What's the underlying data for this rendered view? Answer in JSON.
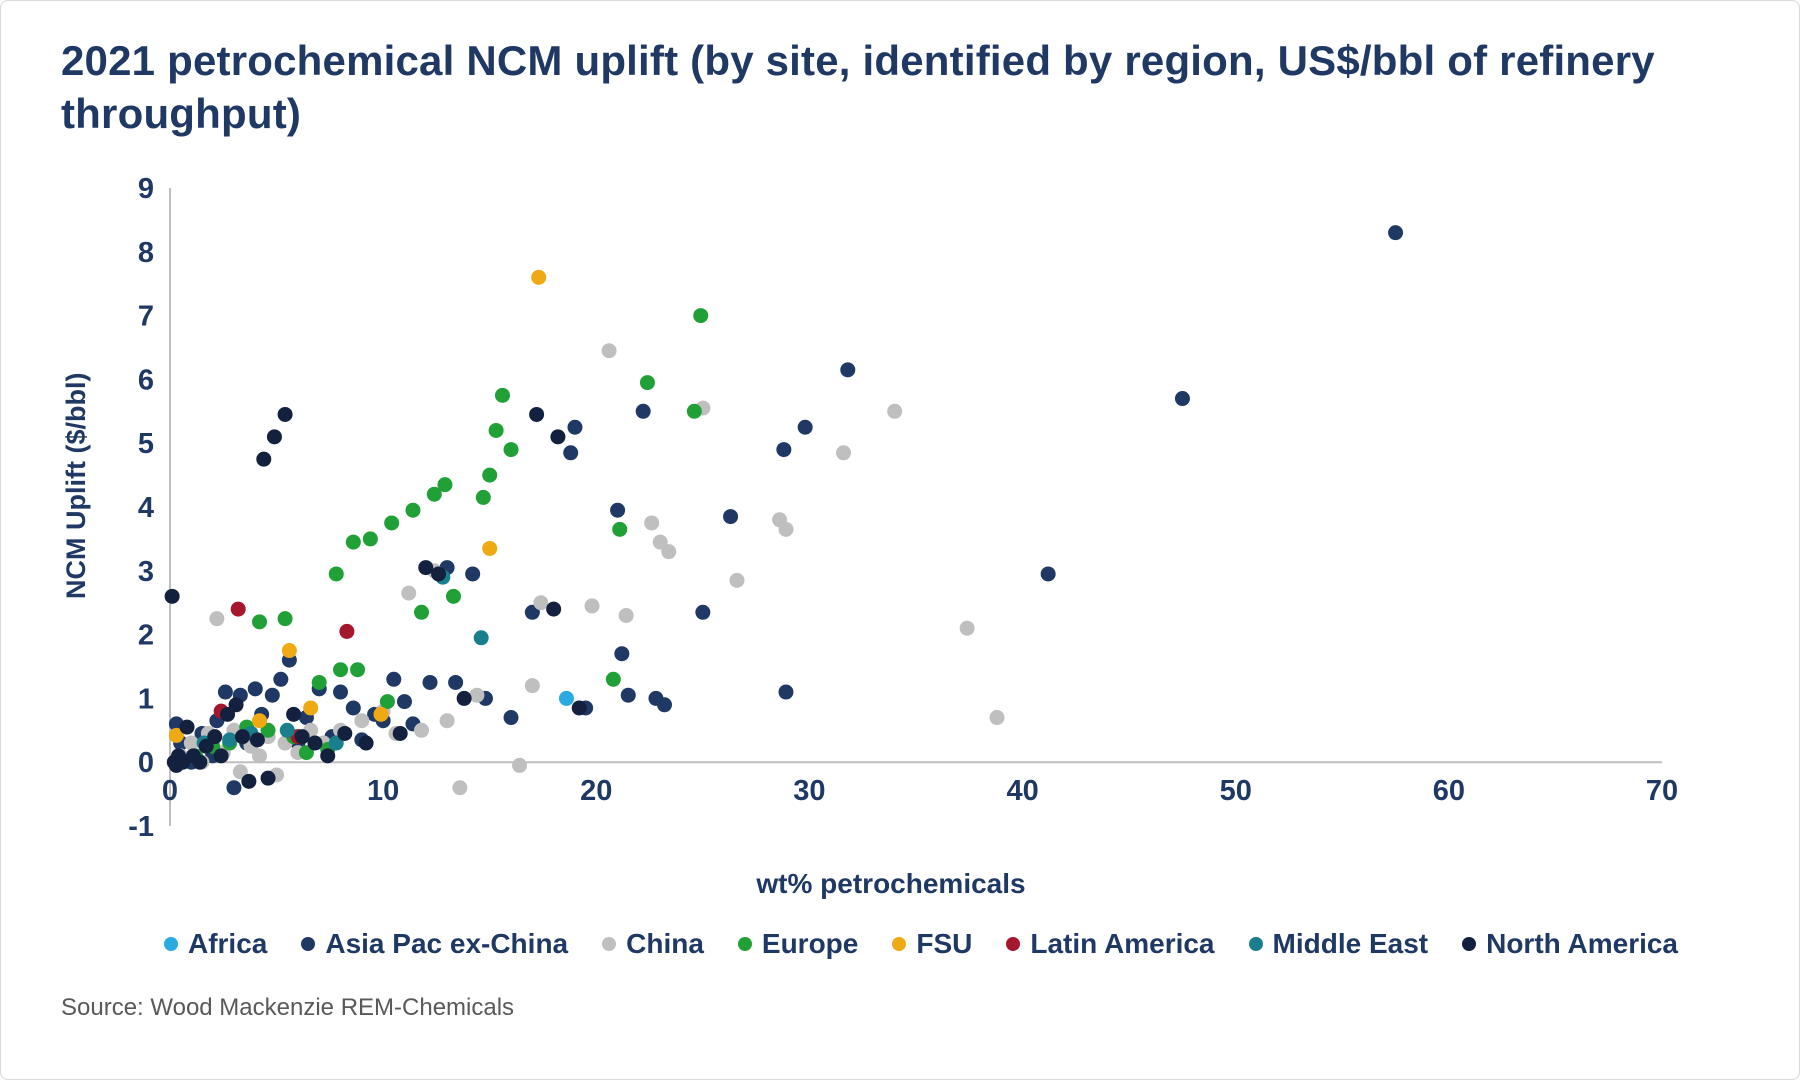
{
  "title": "2021 petrochemical NCM uplift (by site, identified by region, US$/bbl of refinery throughput)",
  "source": "Source: Wood Mackenzie REM-Chemicals",
  "chart_data": {
    "type": "scatter",
    "title": "2021 petrochemical NCM uplift (by site, identified by region, US$/bbl of refinery throughput)",
    "xlabel": "wt% petrochemicals",
    "ylabel": "NCM Uplift ($/bbl)",
    "xlim": [
      0,
      70
    ],
    "ylim": [
      -1,
      9
    ],
    "x_ticks": [
      0,
      10,
      20,
      30,
      40,
      50,
      60,
      70
    ],
    "y_ticks": [
      -1,
      0,
      1,
      2,
      3,
      4,
      5,
      6,
      7,
      8,
      9
    ],
    "grid": false,
    "legend_position": "bottom",
    "axis_color": "#bfbfbf",
    "tick_label_color": "#1f3864",
    "series": [
      {
        "name": "Africa",
        "color": "#29abe2",
        "points": [
          [
            1.2,
            0.05
          ],
          [
            18.6,
            1.0
          ]
        ]
      },
      {
        "name": "Asia Pac ex-China",
        "color": "#1f3864",
        "points": [
          [
            0.3,
            0.6
          ],
          [
            0.5,
            0.3
          ],
          [
            0.8,
            0.05
          ],
          [
            1.0,
            0.0
          ],
          [
            1.5,
            0.45
          ],
          [
            2.0,
            0.1
          ],
          [
            2.2,
            0.65
          ],
          [
            2.6,
            1.1
          ],
          [
            3.0,
            -0.4
          ],
          [
            3.3,
            1.05
          ],
          [
            3.6,
            0.3
          ],
          [
            4.0,
            1.15
          ],
          [
            4.3,
            0.75
          ],
          [
            4.8,
            1.05
          ],
          [
            5.2,
            1.3
          ],
          [
            5.6,
            1.6
          ],
          [
            6.0,
            0.3
          ],
          [
            6.4,
            0.7
          ],
          [
            7.0,
            1.15
          ],
          [
            7.6,
            0.4
          ],
          [
            8.0,
            1.1
          ],
          [
            8.6,
            0.85
          ],
          [
            9.0,
            0.35
          ],
          [
            9.6,
            0.75
          ],
          [
            10.0,
            0.65
          ],
          [
            10.5,
            1.3
          ],
          [
            11.0,
            0.95
          ],
          [
            11.4,
            0.6
          ],
          [
            12.2,
            1.25
          ],
          [
            13.0,
            3.05
          ],
          [
            13.4,
            1.25
          ],
          [
            14.2,
            2.95
          ],
          [
            14.8,
            1.0
          ],
          [
            16.0,
            0.7
          ],
          [
            17.0,
            2.35
          ],
          [
            18.8,
            4.85
          ],
          [
            19.0,
            5.25
          ],
          [
            19.5,
            0.85
          ],
          [
            21.0,
            3.95
          ],
          [
            21.2,
            1.7
          ],
          [
            21.5,
            1.05
          ],
          [
            22.2,
            5.5
          ],
          [
            22.8,
            1.0
          ],
          [
            23.2,
            0.9
          ],
          [
            25.0,
            2.35
          ],
          [
            26.3,
            3.85
          ],
          [
            28.8,
            4.9
          ],
          [
            28.9,
            1.1
          ],
          [
            29.8,
            5.25
          ],
          [
            31.8,
            6.15
          ],
          [
            41.2,
            2.95
          ],
          [
            47.5,
            5.7
          ],
          [
            57.5,
            8.3
          ]
        ]
      },
      {
        "name": "China",
        "color": "#bfbfbf",
        "points": [
          [
            0.5,
            0.1
          ],
          [
            1.0,
            0.3
          ],
          [
            1.5,
            0.0
          ],
          [
            1.8,
            0.45
          ],
          [
            2.2,
            2.25
          ],
          [
            2.5,
            0.15
          ],
          [
            3.0,
            0.5
          ],
          [
            3.3,
            -0.15
          ],
          [
            3.8,
            0.25
          ],
          [
            4.2,
            0.1
          ],
          [
            4.6,
            0.4
          ],
          [
            5.0,
            -0.2
          ],
          [
            5.4,
            0.3
          ],
          [
            6.0,
            0.15
          ],
          [
            6.6,
            0.5
          ],
          [
            7.2,
            0.3
          ],
          [
            8.0,
            0.5
          ],
          [
            9.0,
            0.65
          ],
          [
            10.0,
            0.8
          ],
          [
            10.6,
            0.45
          ],
          [
            11.2,
            2.65
          ],
          [
            11.8,
            0.5
          ],
          [
            12.4,
            3.0
          ],
          [
            13.0,
            0.65
          ],
          [
            13.6,
            -0.4
          ],
          [
            14.4,
            1.05
          ],
          [
            16.4,
            -0.05
          ],
          [
            17.0,
            1.2
          ],
          [
            17.4,
            2.5
          ],
          [
            19.8,
            2.45
          ],
          [
            20.6,
            6.45
          ],
          [
            21.4,
            2.3
          ],
          [
            22.6,
            3.75
          ],
          [
            23.0,
            3.45
          ],
          [
            23.4,
            3.3
          ],
          [
            25.0,
            5.55
          ],
          [
            26.6,
            2.85
          ],
          [
            28.6,
            3.8
          ],
          [
            28.9,
            3.65
          ],
          [
            31.6,
            4.85
          ],
          [
            34.0,
            5.5
          ],
          [
            37.4,
            2.1
          ],
          [
            38.8,
            0.7
          ]
        ]
      },
      {
        "name": "Europe",
        "color": "#21a038",
        "points": [
          [
            1.2,
            0.1
          ],
          [
            2.0,
            0.25
          ],
          [
            2.8,
            0.3
          ],
          [
            3.6,
            0.55
          ],
          [
            4.2,
            2.2
          ],
          [
            4.6,
            0.5
          ],
          [
            5.4,
            2.25
          ],
          [
            5.8,
            0.4
          ],
          [
            6.4,
            0.15
          ],
          [
            7.0,
            1.25
          ],
          [
            7.4,
            0.2
          ],
          [
            7.8,
            2.95
          ],
          [
            8.0,
            1.45
          ],
          [
            8.6,
            3.45
          ],
          [
            8.8,
            1.45
          ],
          [
            9.4,
            3.5
          ],
          [
            10.2,
            0.95
          ],
          [
            10.4,
            3.75
          ],
          [
            11.4,
            3.95
          ],
          [
            11.8,
            2.35
          ],
          [
            12.4,
            4.2
          ],
          [
            12.9,
            4.35
          ],
          [
            13.3,
            2.6
          ],
          [
            14.7,
            4.15
          ],
          [
            15.0,
            4.5
          ],
          [
            15.3,
            5.2
          ],
          [
            15.6,
            5.75
          ],
          [
            16.0,
            4.9
          ],
          [
            20.8,
            1.3
          ],
          [
            21.1,
            3.65
          ],
          [
            22.4,
            5.95
          ],
          [
            24.6,
            5.5
          ],
          [
            24.9,
            7.0
          ]
        ]
      },
      {
        "name": "FSU",
        "color": "#efa912",
        "points": [
          [
            0.3,
            0.42
          ],
          [
            4.2,
            0.65
          ],
          [
            5.6,
            1.75
          ],
          [
            6.6,
            0.85
          ],
          [
            9.9,
            0.75
          ],
          [
            15.0,
            3.35
          ],
          [
            17.3,
            7.6
          ]
        ]
      },
      {
        "name": "Latin America",
        "color": "#a6172d",
        "points": [
          [
            2.4,
            0.8
          ],
          [
            3.2,
            2.4
          ],
          [
            6.0,
            0.4
          ],
          [
            8.3,
            2.05
          ]
        ]
      },
      {
        "name": "Middle East",
        "color": "#1a7f8c",
        "points": [
          [
            1.6,
            0.3
          ],
          [
            2.8,
            0.35
          ],
          [
            3.8,
            0.45
          ],
          [
            5.5,
            0.5
          ],
          [
            7.8,
            0.3
          ],
          [
            12.8,
            2.9
          ],
          [
            14.6,
            1.95
          ]
        ]
      },
      {
        "name": "North America",
        "color": "#13213f",
        "points": [
          [
            0.1,
            2.6
          ],
          [
            0.2,
            0.0
          ],
          [
            0.3,
            -0.05
          ],
          [
            0.4,
            0.1
          ],
          [
            0.6,
            0.0
          ],
          [
            0.8,
            0.55
          ],
          [
            1.1,
            0.1
          ],
          [
            1.4,
            0.0
          ],
          [
            1.7,
            0.25
          ],
          [
            2.1,
            0.4
          ],
          [
            2.4,
            0.1
          ],
          [
            2.7,
            0.75
          ],
          [
            3.1,
            0.9
          ],
          [
            3.4,
            0.4
          ],
          [
            3.7,
            -0.3
          ],
          [
            4.1,
            0.35
          ],
          [
            4.4,
            4.75
          ],
          [
            4.6,
            -0.25
          ],
          [
            4.9,
            5.1
          ],
          [
            5.4,
            5.45
          ],
          [
            5.8,
            0.75
          ],
          [
            6.2,
            0.4
          ],
          [
            6.8,
            0.3
          ],
          [
            7.4,
            0.1
          ],
          [
            8.2,
            0.45
          ],
          [
            9.2,
            0.3
          ],
          [
            10.8,
            0.45
          ],
          [
            12.0,
            3.05
          ],
          [
            12.6,
            2.95
          ],
          [
            13.8,
            1.0
          ],
          [
            17.2,
            5.45
          ],
          [
            18.0,
            2.4
          ],
          [
            18.2,
            5.1
          ],
          [
            19.2,
            0.85
          ]
        ]
      }
    ]
  }
}
